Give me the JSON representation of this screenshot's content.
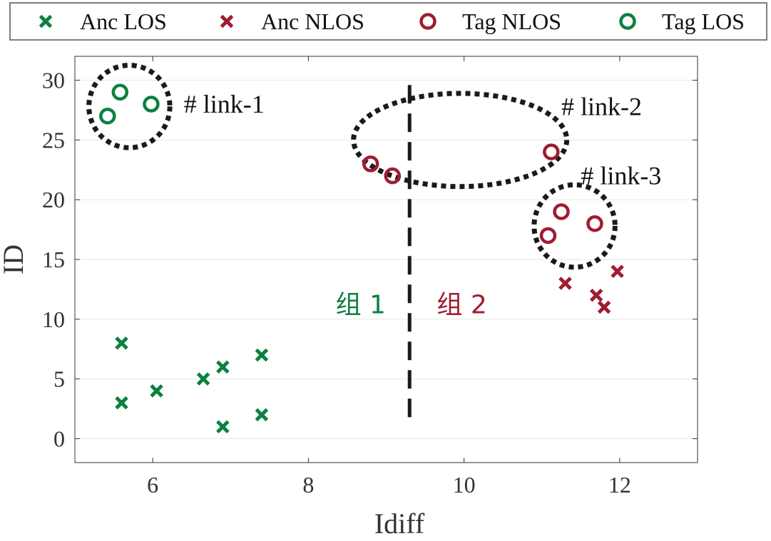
{
  "colors": {
    "green": "#0c8040",
    "red": "#a01c30",
    "annotation": "#1a1a1a",
    "grid": "#e6e6e6",
    "axis": "#333333"
  },
  "chart_data": {
    "type": "scatter",
    "xlabel": "Idiff",
    "ylabel": "ID",
    "xlim": [
      5,
      13
    ],
    "ylim": [
      -2,
      32
    ],
    "xticks": [
      6,
      8,
      10,
      12
    ],
    "yticks": [
      0,
      5,
      10,
      15,
      20,
      25,
      30
    ],
    "grid": "horizontal",
    "legend_position": "top",
    "series": [
      {
        "name": "Anc LOS",
        "marker": "x",
        "color": "#0c8040",
        "points": [
          {
            "x": 5.6,
            "y": 8
          },
          {
            "x": 5.6,
            "y": 3
          },
          {
            "x": 6.05,
            "y": 4
          },
          {
            "x": 6.65,
            "y": 5
          },
          {
            "x": 6.9,
            "y": 6
          },
          {
            "x": 6.9,
            "y": 1
          },
          {
            "x": 7.4,
            "y": 7
          },
          {
            "x": 7.4,
            "y": 2
          }
        ]
      },
      {
        "name": "Anc NLOS",
        "marker": "x",
        "color": "#a01c30",
        "points": [
          {
            "x": 11.3,
            "y": 13
          },
          {
            "x": 11.7,
            "y": 12
          },
          {
            "x": 11.8,
            "y": 11
          },
          {
            "x": 11.97,
            "y": 14
          }
        ]
      },
      {
        "name": "Tag NLOS",
        "marker": "o",
        "color": "#a01c30",
        "points": [
          {
            "x": 8.8,
            "y": 23
          },
          {
            "x": 9.08,
            "y": 22
          },
          {
            "x": 11.12,
            "y": 24
          },
          {
            "x": 11.08,
            "y": 17
          },
          {
            "x": 11.25,
            "y": 19
          },
          {
            "x": 11.68,
            "y": 18
          }
        ]
      },
      {
        "name": "Tag LOS",
        "marker": "o",
        "color": "#0c8040",
        "points": [
          {
            "x": 5.42,
            "y": 27
          },
          {
            "x": 5.58,
            "y": 29
          },
          {
            "x": 5.98,
            "y": 28
          }
        ]
      }
    ],
    "divider": {
      "x": 9.3,
      "y_from": 1.2,
      "y_to": 29.6
    },
    "ellipses": [
      {
        "cx": 5.7,
        "cy": 27.8,
        "rx": 0.52,
        "ry": 3.45
      },
      {
        "cx": 9.95,
        "cy": 25.0,
        "rx": 1.37,
        "ry": 3.9
      },
      {
        "cx": 11.42,
        "cy": 17.8,
        "rx": 0.52,
        "ry": 3.45
      }
    ],
    "annotations": [
      {
        "text": "# link-1",
        "x": 6.4,
        "y": 28.0
      },
      {
        "text": "# link-2",
        "x": 11.25,
        "y": 27.8
      },
      {
        "text": "# link-3",
        "x": 11.5,
        "y": 22.0
      }
    ],
    "group_labels": [
      {
        "text": "组 1",
        "x": 8.35,
        "y": 11.2,
        "color": "#0c8040"
      },
      {
        "text": "组 2",
        "x": 9.65,
        "y": 11.2,
        "color": "#a01c30"
      }
    ]
  }
}
